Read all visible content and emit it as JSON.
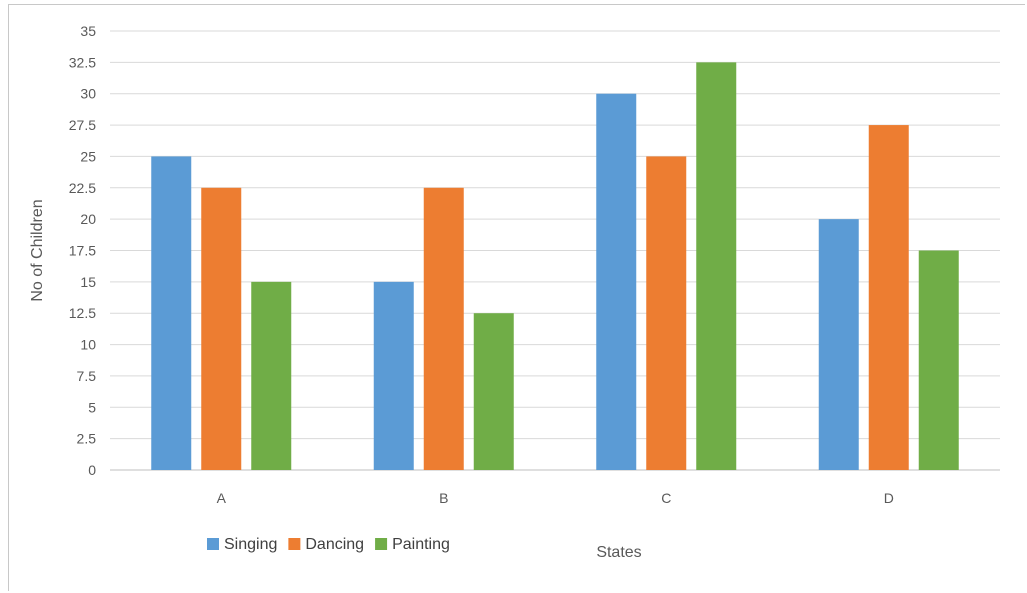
{
  "chart_data": {
    "type": "bar",
    "categories": [
      "A",
      "B",
      "C",
      "D"
    ],
    "series": [
      {
        "name": "Singing",
        "color": "#5b9bd5",
        "values": [
          25,
          15,
          30,
          20
        ]
      },
      {
        "name": "Dancing",
        "color": "#ed7d31",
        "values": [
          22.5,
          22.5,
          25,
          27.5
        ]
      },
      {
        "name": "Painting",
        "color": "#70ad47",
        "values": [
          15,
          12.5,
          32.5,
          17.5
        ]
      }
    ],
    "xlabel": "States",
    "ylabel": "No of Children",
    "ylim": [
      0,
      35
    ],
    "yticks": [
      "0",
      "2.5",
      "5",
      "7.5",
      "10",
      "12.5",
      "15",
      "17.5",
      "20",
      "22.5",
      "25",
      "27.5",
      "30",
      "32.5",
      "35"
    ],
    "grid": true,
    "legend_position": "bottom-left"
  }
}
